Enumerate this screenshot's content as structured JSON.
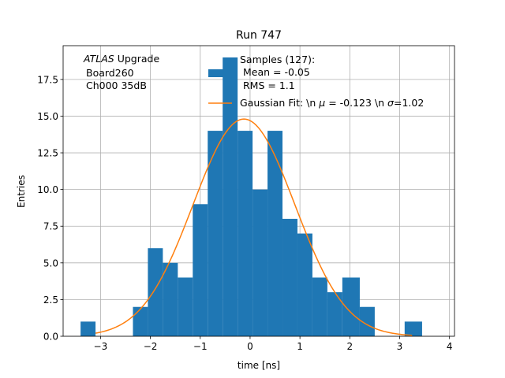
{
  "chart_data": {
    "type": "bar",
    "title": "Run 747",
    "xlabel": "time [ns]",
    "ylabel": "Entries",
    "xlim": [
      -3.75,
      4.1
    ],
    "ylim": [
      0,
      19.8
    ],
    "grid": true,
    "xticks": [
      -3,
      -2,
      -1,
      0,
      1,
      2,
      3,
      4
    ],
    "xtick_labels": [
      "−3",
      "−2",
      "−1",
      "0",
      "1",
      "2",
      "3",
      "4"
    ],
    "yticks": [
      0,
      2.5,
      5,
      7.5,
      10,
      12.5,
      15,
      17.5
    ],
    "ytick_labels": [
      "0.0",
      "2.5",
      "5.0",
      "7.5",
      "10.0",
      "12.5",
      "15.0",
      "17.5"
    ],
    "bin_edges": [
      -3.4,
      -3.1,
      -2.7,
      -2.35,
      -2.05,
      -1.75,
      -1.45,
      -1.15,
      -0.85,
      -0.55,
      -0.25,
      0.05,
      0.35,
      0.65,
      0.95,
      1.25,
      1.55,
      1.85,
      2.2,
      2.5,
      2.8,
      3.1,
      3.45
    ],
    "counts": [
      1,
      0,
      0,
      2,
      6,
      5,
      4,
      9,
      14,
      19,
      14,
      10,
      14,
      8,
      7,
      4,
      3,
      4,
      2,
      0,
      0,
      1
    ],
    "bar_color": "#1f77b4",
    "fit": {
      "mu": -0.123,
      "sigma": 1.02,
      "peak": 14.8,
      "x_range": [
        -3.1,
        3.25
      ],
      "color": "#ff7f0e"
    },
    "annotation": {
      "line1_italic": "ATLAS",
      "line1_rest": " Upgrade",
      "line2": "Board260",
      "line3": "Ch000 35dB"
    },
    "legend": {
      "placement": "top-right",
      "samples": [
        "Samples (127):",
        "Mean = -0.05",
        "RMS = 1.1"
      ],
      "fit_prefix": "Gaussian Fit: \\n ",
      "fit_mu_symbol": "μ",
      "fit_mu_value": " = -0.123 \\n ",
      "fit_sigma_symbol": "σ",
      "fit_sigma_value": "=1.02"
    }
  }
}
